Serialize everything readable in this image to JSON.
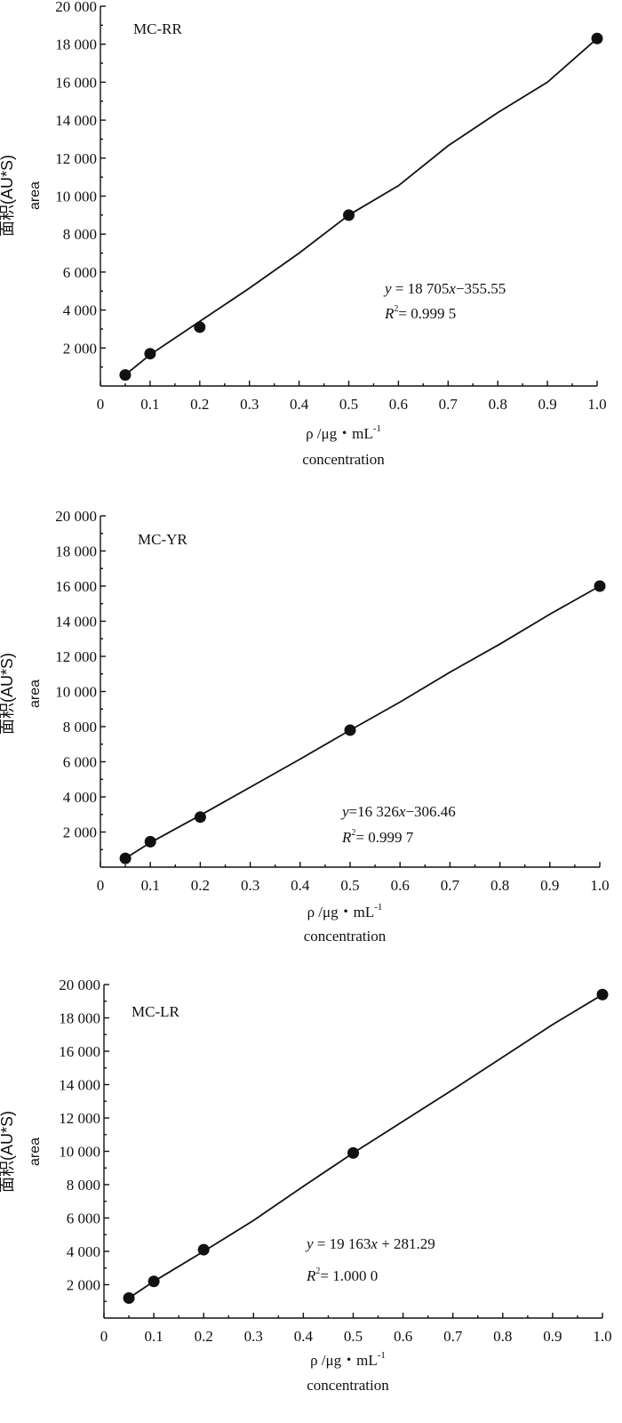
{
  "chart_data": [
    {
      "type": "line",
      "title": "MC-RR",
      "ylabel": "面积(AU*S)",
      "ylabel2": "area",
      "xlabel": "ρ /μg・mL",
      "xlabel_sup": "-1",
      "xlabel2": "concentration",
      "equation": {
        "y": "y",
        "rhs": " = 18 705",
        "x": "x",
        "rest": "−355.55"
      },
      "r2": {
        "R": "R",
        "sup": "2",
        "val": "= 0.999 5"
      },
      "x": [
        0.05,
        0.1,
        0.2,
        0.5,
        1.0
      ],
      "series": [
        {
          "values": [
            580,
            1700,
            3100,
            9000,
            18300
          ]
        }
      ],
      "fit": [
        0.05,
        0.1,
        0.2,
        0.3,
        0.4,
        0.5,
        0.6,
        0.7,
        0.8,
        0.9,
        1.0
      ],
      "fit_values": [
        580,
        1650,
        3400,
        5150,
        7000,
        9000,
        10550,
        12650,
        14400,
        16000,
        18300
      ],
      "xlim": [
        0,
        1.0
      ],
      "ylim": [
        0,
        20000
      ],
      "xticks": [
        "0",
        "0.1",
        "0.2",
        "0.3",
        "0.4",
        "0.5",
        "0.6",
        "0.7",
        "0.8",
        "0.9",
        "1.0"
      ],
      "yticks": [
        "2 000",
        "4 000",
        "6 000",
        "8 000",
        "10 000",
        "12 000",
        "14 000",
        "16 000",
        "18 000",
        "20 000"
      ]
    },
    {
      "type": "line",
      "title": "MC-YR",
      "ylabel": "面积(AU*S)",
      "ylabel2": "area",
      "xlabel": "ρ /μg・mL",
      "xlabel_sup": "-1",
      "xlabel2": "concentration",
      "equation": {
        "y": "y",
        "rhs": "=16 326",
        "x": "x",
        "rest": "−306.46"
      },
      "r2": {
        "R": "R",
        "sup": "2",
        "val": "= 0.999 7"
      },
      "x": [
        0.05,
        0.1,
        0.2,
        0.5,
        1.0
      ],
      "series": [
        {
          "values": [
            500,
            1450,
            2850,
            7800,
            16000
          ]
        }
      ],
      "fit": [
        0.05,
        0.1,
        0.2,
        0.3,
        0.4,
        0.5,
        0.6,
        0.7,
        0.8,
        0.9,
        1.0
      ],
      "fit_values": [
        500,
        1400,
        2950,
        4550,
        6150,
        7800,
        9400,
        11100,
        12700,
        14400,
        16000
      ],
      "xlim": [
        0,
        1.0
      ],
      "ylim": [
        0,
        20000
      ],
      "xticks": [
        "0",
        "0.1",
        "0.2",
        "0.3",
        "0.4",
        "0.5",
        "0.6",
        "0.7",
        "0.8",
        "0.9",
        "1.0"
      ],
      "yticks": [
        "2 000",
        "4 000",
        "6 000",
        "8 000",
        "10 000",
        "12 000",
        "14 000",
        "16 000",
        "18 000",
        "20 000"
      ]
    },
    {
      "type": "line",
      "title": "MC-LR",
      "ylabel": "面积(AU*S)",
      "ylabel2": "area",
      "xlabel": "ρ /μg・mL",
      "xlabel_sup": "-1",
      "xlabel2": "concentration",
      "equation": {
        "y": "y",
        "rhs": " = 19 163",
        "x": "x",
        "rest": " + 281.29"
      },
      "r2": {
        "R": "R",
        "sup": "2",
        "val": "= 1.000 0"
      },
      "x": [
        0.05,
        0.1,
        0.2,
        0.5,
        1.0
      ],
      "series": [
        {
          "values": [
            1200,
            2200,
            4100,
            9900,
            19400
          ]
        }
      ],
      "fit": [
        0.05,
        0.1,
        0.2,
        0.3,
        0.4,
        0.5,
        0.6,
        0.7,
        0.8,
        0.9,
        1.0
      ],
      "fit_values": [
        1200,
        2200,
        4000,
        5850,
        7900,
        9900,
        11800,
        13700,
        15650,
        17600,
        19400
      ],
      "xlim": [
        0,
        1.0
      ],
      "ylim": [
        0,
        20000
      ],
      "xticks": [
        "0",
        "0.1",
        "0.2",
        "0.3",
        "0.4",
        "0.5",
        "0.6",
        "0.7",
        "0.8",
        "0.9",
        "1.0"
      ],
      "yticks": [
        "2 000",
        "4 000",
        "6 000",
        "8 000",
        "10 000",
        "12 000",
        "14 000",
        "16 000",
        "18 000",
        "20 000"
      ]
    }
  ]
}
